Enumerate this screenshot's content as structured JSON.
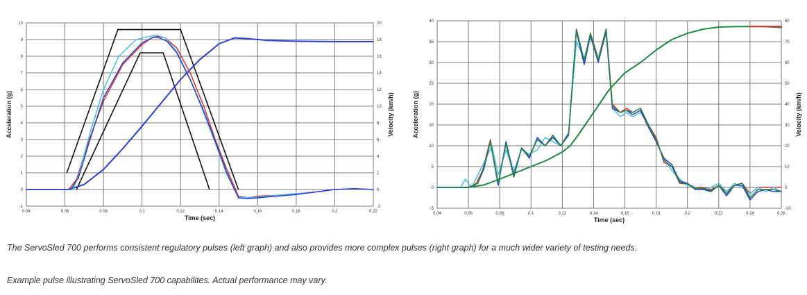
{
  "chart_data": [
    {
      "type": "line",
      "xlabel": "Time (sec)",
      "ylabel": "Acceleration (g)",
      "y2label": "Velocity (km/h)",
      "xlim": [
        0.04,
        0.22
      ],
      "ylim": [
        -1,
        10
      ],
      "y2lim": [
        -2,
        20
      ],
      "xticks": [
        "0.04",
        "0.06",
        "0.08",
        "0.1",
        "0.12",
        "0.14",
        "0.16",
        "0.18",
        "0.2",
        "0.22"
      ],
      "yticks": [
        "-1",
        "0",
        "1",
        "2",
        "3",
        "4",
        "5",
        "6",
        "7",
        "8",
        "9",
        "10"
      ],
      "y2ticks": [
        "-2",
        "0",
        "2",
        "4",
        "6",
        "8",
        "10",
        "12",
        "14",
        "16",
        "18",
        "20"
      ],
      "grid": true,
      "corridors": [
        {
          "x": [
            0.061,
            0.0875,
            0.12,
            0.15
          ],
          "y": [
            1.0,
            9.6,
            9.6,
            0.0
          ]
        },
        {
          "x": [
            0.066,
            0.099,
            0.111,
            0.135
          ],
          "y": [
            0.0,
            8.2,
            8.2,
            0.0
          ]
        }
      ],
      "series": [
        {
          "color": "#e0312b",
          "x": [
            0.04,
            0.062,
            0.066,
            0.072,
            0.08,
            0.09,
            0.1,
            0.105,
            0.108,
            0.112,
            0.118,
            0.125,
            0.132,
            0.138,
            0.144,
            0.15,
            0.155,
            0.16,
            0.17,
            0.18,
            0.19,
            0.2,
            0.21,
            0.22
          ],
          "y": [
            0,
            0,
            0.6,
            2.8,
            5.3,
            7.5,
            8.7,
            9.1,
            9.2,
            9.1,
            8.5,
            7.0,
            5.0,
            3.0,
            1.2,
            -0.4,
            -0.5,
            -0.4,
            -0.35,
            -0.25,
            -0.15,
            0,
            0.05,
            0
          ]
        },
        {
          "color": "#4cbfe6",
          "x": [
            0.04,
            0.064,
            0.067,
            0.073,
            0.08,
            0.088,
            0.097,
            0.104,
            0.108,
            0.112,
            0.118,
            0.125,
            0.132,
            0.138,
            0.144,
            0.15,
            0.155,
            0.16,
            0.17,
            0.18,
            0.19,
            0.2,
            0.21,
            0.22
          ],
          "y": [
            0,
            0,
            0.8,
            3.4,
            6.0,
            8.0,
            9.0,
            9.2,
            9.25,
            9.1,
            8.3,
            6.6,
            4.6,
            2.8,
            0.9,
            -0.45,
            -0.5,
            -0.45,
            -0.35,
            -0.25,
            -0.15,
            0,
            0.05,
            0
          ]
        },
        {
          "color": "#2a3fd6",
          "x": [
            0.04,
            0.063,
            0.067,
            0.073,
            0.08,
            0.09,
            0.1,
            0.106,
            0.109,
            0.113,
            0.118,
            0.125,
            0.132,
            0.138,
            0.144,
            0.15,
            0.155,
            0.16,
            0.17,
            0.18,
            0.19,
            0.2,
            0.21,
            0.22
          ],
          "y": [
            0,
            0,
            0.7,
            3.0,
            5.5,
            7.6,
            8.8,
            9.15,
            9.1,
            8.9,
            8.2,
            6.6,
            4.7,
            2.9,
            1.0,
            -0.5,
            -0.55,
            -0.5,
            -0.4,
            -0.3,
            -0.15,
            0,
            0.05,
            0
          ]
        }
      ],
      "velocity_series": [
        {
          "color": "#2a3fd6",
          "x": [
            0.04,
            0.062,
            0.07,
            0.08,
            0.09,
            0.1,
            0.11,
            0.12,
            0.13,
            0.14,
            0.148,
            0.155,
            0.165,
            0.18,
            0.2,
            0.22
          ],
          "y": [
            0,
            0,
            0.6,
            2.4,
            4.9,
            7.6,
            10.4,
            13.2,
            15.6,
            17.5,
            18.2,
            18.1,
            17.9,
            17.8,
            17.75,
            17.75
          ]
        }
      ]
    },
    {
      "type": "line",
      "xlabel": "Time (sec)",
      "ylabel": "Acceleration (g)",
      "y2label": "Velocity (km/h)",
      "xlim": [
        0.04,
        0.26
      ],
      "ylim": [
        -5,
        40
      ],
      "y2lim": [
        -10,
        80
      ],
      "xticks": [
        "0.04",
        "0.06",
        "0.08",
        "0.1",
        "0.12",
        "0.14",
        "0.16",
        "0.18",
        "0.2",
        "0.22",
        "0.24",
        "0.26"
      ],
      "yticks": [
        "-5",
        "0",
        "5",
        "10",
        "15",
        "20",
        "25",
        "30",
        "35",
        "40"
      ],
      "y2ticks": [
        "-10",
        "0",
        "10",
        "20",
        "30",
        "40",
        "50",
        "60",
        "70",
        "80"
      ],
      "grid": true,
      "series": [
        {
          "color": "#e0312b",
          "x": [
            0.04,
            0.06,
            0.065,
            0.069,
            0.074,
            0.079,
            0.084,
            0.089,
            0.094,
            0.099,
            0.104,
            0.109,
            0.114,
            0.119,
            0.124,
            0.129,
            0.134,
            0.138,
            0.143,
            0.148,
            0.152,
            0.157,
            0.161,
            0.165,
            0.17,
            0.175,
            0.18,
            0.185,
            0.19,
            0.195,
            0.2,
            0.205,
            0.21,
            0.215,
            0.22,
            0.225,
            0.23,
            0.235,
            0.24,
            0.245,
            0.25,
            0.255,
            0.26
          ],
          "y": [
            0,
            0,
            1,
            4,
            11.5,
            1,
            10.5,
            2.5,
            9.5,
            7.5,
            11.5,
            10,
            12.5,
            10,
            12.5,
            38,
            30,
            37,
            31,
            38,
            20,
            18,
            19,
            18,
            19,
            15,
            12,
            6,
            5,
            1,
            0.8,
            0,
            0,
            -0.5,
            0.5,
            -1,
            0.5,
            1,
            -1.5,
            0,
            0,
            0,
            0
          ]
        },
        {
          "color": "#4cbfe6",
          "x": [
            0.04,
            0.055,
            0.058,
            0.062,
            0.066,
            0.07,
            0.075,
            0.079,
            0.084,
            0.089,
            0.094,
            0.099,
            0.104,
            0.109,
            0.114,
            0.119,
            0.124,
            0.129,
            0.134,
            0.138,
            0.143,
            0.148,
            0.152,
            0.157,
            0.161,
            0.165,
            0.17,
            0.175,
            0.18,
            0.185,
            0.19,
            0.195,
            0.2,
            0.205,
            0.21,
            0.215,
            0.22,
            0.225,
            0.23,
            0.235,
            0.24,
            0.245,
            0.25,
            0.255,
            0.26
          ],
          "y": [
            0,
            0,
            2,
            0,
            3,
            6,
            10,
            3,
            9,
            4,
            9,
            8,
            9,
            12,
            11,
            10,
            13,
            35,
            31,
            36,
            31,
            37,
            19,
            17,
            18,
            17,
            18,
            15,
            11,
            7,
            4,
            2,
            0.5,
            0,
            -0.5,
            0,
            1,
            -1,
            1,
            0,
            -1.5,
            0,
            -1,
            0,
            -1
          ]
        },
        {
          "color": "#2a3fd6",
          "x": [
            0.04,
            0.061,
            0.066,
            0.07,
            0.074,
            0.079,
            0.084,
            0.089,
            0.094,
            0.099,
            0.104,
            0.109,
            0.114,
            0.119,
            0.124,
            0.129,
            0.134,
            0.138,
            0.143,
            0.148,
            0.152,
            0.157,
            0.161,
            0.165,
            0.17,
            0.175,
            0.18,
            0.185,
            0.19,
            0.195,
            0.2,
            0.205,
            0.21,
            0.215,
            0.22,
            0.225,
            0.23,
            0.235,
            0.24,
            0.245,
            0.25,
            0.255,
            0.26
          ],
          "y": [
            0,
            0,
            1,
            5,
            11,
            0.5,
            11,
            3,
            9.5,
            7,
            12,
            10,
            12,
            10,
            13,
            37.5,
            29.5,
            36.5,
            30,
            37.5,
            19,
            18,
            18.5,
            17.5,
            18.5,
            14.5,
            11,
            7,
            5.5,
            1.5,
            1,
            -0.5,
            -0.5,
            -1,
            0.5,
            -2,
            0.5,
            0.5,
            -3,
            -1,
            -0.5,
            -1,
            -1
          ]
        },
        {
          "color": "#1c8a3c",
          "x": [
            0.04,
            0.061,
            0.066,
            0.07,
            0.074,
            0.079,
            0.084,
            0.089,
            0.094,
            0.099,
            0.104,
            0.109,
            0.114,
            0.119,
            0.124,
            0.129,
            0.134,
            0.138,
            0.143,
            0.148,
            0.152,
            0.157,
            0.161,
            0.165,
            0.17,
            0.175,
            0.18,
            0.185,
            0.19,
            0.195,
            0.2,
            0.205,
            0.21,
            0.215,
            0.22,
            0.225,
            0.23,
            0.235,
            0.24,
            0.245,
            0.25,
            0.255,
            0.26
          ],
          "y": [
            0,
            0,
            1,
            4.5,
            11,
            1,
            10.5,
            2.5,
            9.5,
            7.5,
            11.5,
            10,
            12.5,
            10,
            12.5,
            38,
            30.5,
            37,
            30.5,
            38,
            19.5,
            18,
            18.5,
            18,
            19,
            15,
            11.5,
            6.5,
            5,
            1.2,
            0.8,
            -0.2,
            -0.2,
            -0.8,
            0.5,
            -1.5,
            0.5,
            1,
            -2.5,
            -0.5,
            -0.5,
            -0.5,
            -1
          ]
        }
      ],
      "velocity_series": [
        {
          "color": "#1c8a3c",
          "x": [
            0.04,
            0.06,
            0.07,
            0.08,
            0.09,
            0.1,
            0.11,
            0.12,
            0.125,
            0.13,
            0.14,
            0.15,
            0.16,
            0.17,
            0.18,
            0.19,
            0.2,
            0.21,
            0.22,
            0.23,
            0.24,
            0.25,
            0.26
          ],
          "y": [
            0,
            0,
            1.2,
            4,
            7,
            10,
            13,
            17,
            20,
            25,
            36,
            47,
            55,
            60,
            66,
            71,
            74,
            76,
            77,
            77.2,
            77.3,
            77.2,
            76.8
          ]
        },
        {
          "color": "#e0312b",
          "x": [
            0.24,
            0.26
          ],
          "y": [
            77.3,
            77.3
          ]
        }
      ]
    }
  ],
  "captions": {
    "line1": "The ServoSled 700 performs consistent regulatory pulses (left graph) and also provides more complex pulses (right graph) for a much wider variety of testing needs.",
    "line2": "Example pulse illustrating ServoSled 700 capabilites. Actual performance may vary."
  }
}
